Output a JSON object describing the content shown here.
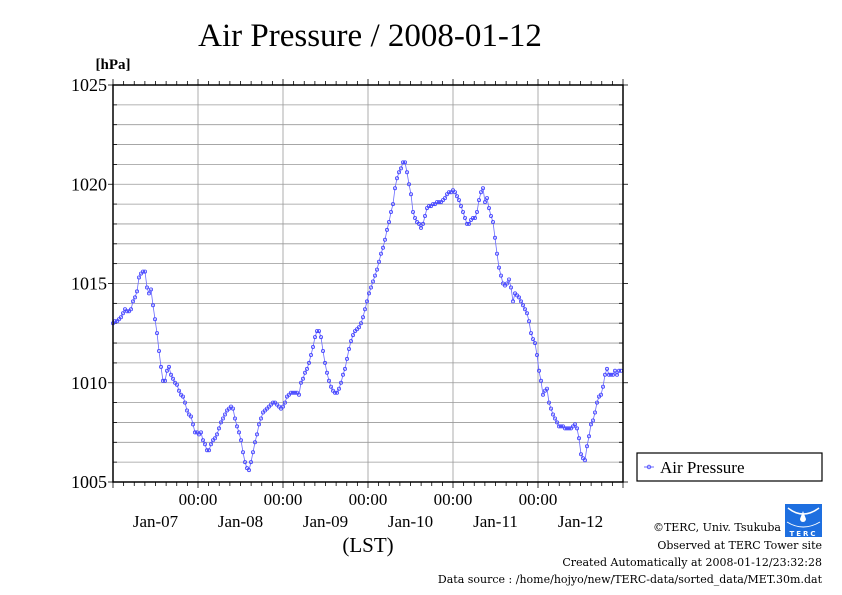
{
  "chart_data": {
    "type": "line",
    "title": "Air Pressure / 2008-01-12",
    "ylabel": "[hPa]",
    "xlabel": "(LST)",
    "ylim": [
      1005,
      1025
    ],
    "yticks": [
      "1005",
      "1010",
      "1015",
      "1020",
      "1025"
    ],
    "y_minor_step": 1,
    "x_unit": "hours since Jan-07 00:00",
    "xlim": [
      0,
      144
    ],
    "x_minor_step_hours": 3,
    "x_time_labels": [
      "00:00",
      "00:00",
      "00:00",
      "00:00",
      "00:00"
    ],
    "x_date_labels": [
      "Jan-07",
      "Jan-08",
      "Jan-09",
      "Jan-10",
      "Jan-11",
      "Jan-12"
    ],
    "grid": true,
    "legend_placement": "right-bottom-outside",
    "series": [
      {
        "name": "Air Pressure",
        "color": "#4444ff",
        "x_start_hour": 0,
        "x_step_hours": 0.5647,
        "values": [
          1013.0,
          1013.1,
          1013.1,
          1013.2,
          1013.3,
          1013.5,
          1013.7,
          1013.6,
          1013.6,
          1013.7,
          1014.1,
          1014.3,
          1014.6,
          1015.3,
          1015.5,
          1015.6,
          1015.6,
          1014.8,
          1014.5,
          1014.7,
          1013.9,
          1013.2,
          1012.5,
          1011.6,
          1010.8,
          1010.1,
          1010.1,
          1010.6,
          1010.8,
          1010.4,
          1010.2,
          1010.0,
          1009.9,
          1009.6,
          1009.4,
          1009.3,
          1009.0,
          1008.6,
          1008.4,
          1008.3,
          1007.9,
          1007.5,
          1007.5,
          1007.4,
          1007.5,
          1007.1,
          1006.9,
          1006.6,
          1006.6,
          1006.9,
          1007.1,
          1007.2,
          1007.4,
          1007.7,
          1008.0,
          1008.2,
          1008.4,
          1008.6,
          1008.7,
          1008.8,
          1008.7,
          1008.2,
          1007.8,
          1007.5,
          1007.1,
          1006.5,
          1006.0,
          1005.7,
          1005.6,
          1006.0,
          1006.5,
          1007.0,
          1007.4,
          1007.9,
          1008.2,
          1008.5,
          1008.6,
          1008.7,
          1008.8,
          1008.9,
          1009.0,
          1009.0,
          1008.9,
          1008.8,
          1008.7,
          1008.8,
          1009.0,
          1009.3,
          1009.4,
          1009.5,
          1009.5,
          1009.5,
          1009.5,
          1009.4,
          1010.0,
          1010.2,
          1010.5,
          1010.7,
          1011.0,
          1011.4,
          1011.8,
          1012.3,
          1012.6,
          1012.6,
          1012.3,
          1011.6,
          1011.0,
          1010.5,
          1010.1,
          1009.8,
          1009.6,
          1009.5,
          1009.5,
          1009.7,
          1010.0,
          1010.4,
          1010.7,
          1011.2,
          1011.7,
          1012.1,
          1012.4,
          1012.6,
          1012.7,
          1012.8,
          1013.0,
          1013.3,
          1013.7,
          1014.1,
          1014.5,
          1014.8,
          1015.1,
          1015.4,
          1015.7,
          1016.1,
          1016.5,
          1016.8,
          1017.2,
          1017.7,
          1018.1,
          1018.6,
          1019.0,
          1019.8,
          1020.3,
          1020.6,
          1020.8,
          1021.1,
          1021.1,
          1020.6,
          1020.0,
          1019.5,
          1018.6,
          1018.3,
          1018.1,
          1018.0,
          1017.8,
          1018.0,
          1018.4,
          1018.8,
          1018.9,
          1018.9,
          1019.0,
          1019.0,
          1019.1,
          1019.1,
          1019.1,
          1019.2,
          1019.3,
          1019.5,
          1019.6,
          1019.6,
          1019.7,
          1019.6,
          1019.4,
          1019.2,
          1018.9,
          1018.6,
          1018.3,
          1018.0,
          1018.0,
          1018.2,
          1018.3,
          1018.3,
          1018.6,
          1019.2,
          1019.6,
          1019.8,
          1019.1,
          1019.3,
          1018.8,
          1018.4,
          1018.1,
          1017.3,
          1016.5,
          1015.8,
          1015.4,
          1015.0,
          1014.9,
          1015.0,
          1015.2,
          1014.8,
          1014.1,
          1014.5,
          1014.4,
          1014.3,
          1014.1,
          1013.9,
          1013.7,
          1013.5,
          1013.1,
          1012.5,
          1012.2,
          1012.0,
          1011.4,
          1010.6,
          1010.1,
          1009.4,
          1009.6,
          1009.7,
          1009.0,
          1008.7,
          1008.4,
          1008.2,
          1008.0,
          1007.8,
          1007.8,
          1007.8,
          1007.7,
          1007.7,
          1007.7,
          1007.7,
          1007.8,
          1007.9,
          1007.7,
          1007.2,
          1006.4,
          1006.2,
          1006.1,
          1006.8,
          1007.3,
          1007.9,
          1008.1,
          1008.5,
          1009.0,
          1009.3,
          1009.4,
          1009.8,
          1010.4,
          1010.7,
          1010.4,
          1010.4,
          1010.4,
          1010.6,
          1010.4,
          1010.6,
          1010.6
        ]
      }
    ]
  },
  "footer": {
    "copyright": "©TERC, Univ. Tsukuba",
    "site": "Observed at TERC Tower site",
    "created": "Created Automatically at 2008-01-12/23:32:28",
    "source": "Data source : /home/hojyo/new/TERC-data/sorted_data/MET.30m.dat",
    "logo_text": "TERC",
    "logo_color": "#1e6fe0"
  }
}
